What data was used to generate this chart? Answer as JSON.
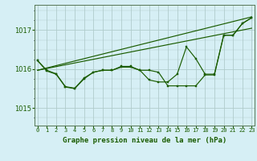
{
  "background_color": "#d6eff5",
  "grid_color": "#b0cccc",
  "line_color": "#1a5c00",
  "title": "Graphe pression niveau de la mer (hPa)",
  "ylim": [
    1014.55,
    1017.65
  ],
  "yticks": [
    1015,
    1016,
    1017
  ],
  "xlim": [
    -0.3,
    23.3
  ],
  "series1_y": [
    1016.22,
    1015.95,
    1015.87,
    1015.54,
    1015.5,
    1015.75,
    1015.92,
    1015.97,
    1015.97,
    1016.07,
    1016.07,
    1015.97,
    1015.97,
    1015.92,
    1015.57,
    1015.57,
    1015.57,
    1015.57,
    1015.85,
    1015.85,
    1016.87,
    1016.87,
    1017.17,
    1017.32
  ],
  "series2_y": [
    1016.22,
    1015.97,
    1015.88,
    1015.55,
    1015.51,
    1015.77,
    1015.92,
    1015.97,
    1015.97,
    1016.05,
    1016.05,
    1015.97,
    1015.72,
    1015.67,
    1015.67,
    1015.87,
    1016.57,
    1016.27,
    1015.87,
    1015.87,
    1016.87,
    1016.87,
    1017.17,
    1017.32
  ],
  "trend_y": [
    1015.97,
    1017.34
  ],
  "trend2_y": [
    1015.97,
    1017.05
  ]
}
